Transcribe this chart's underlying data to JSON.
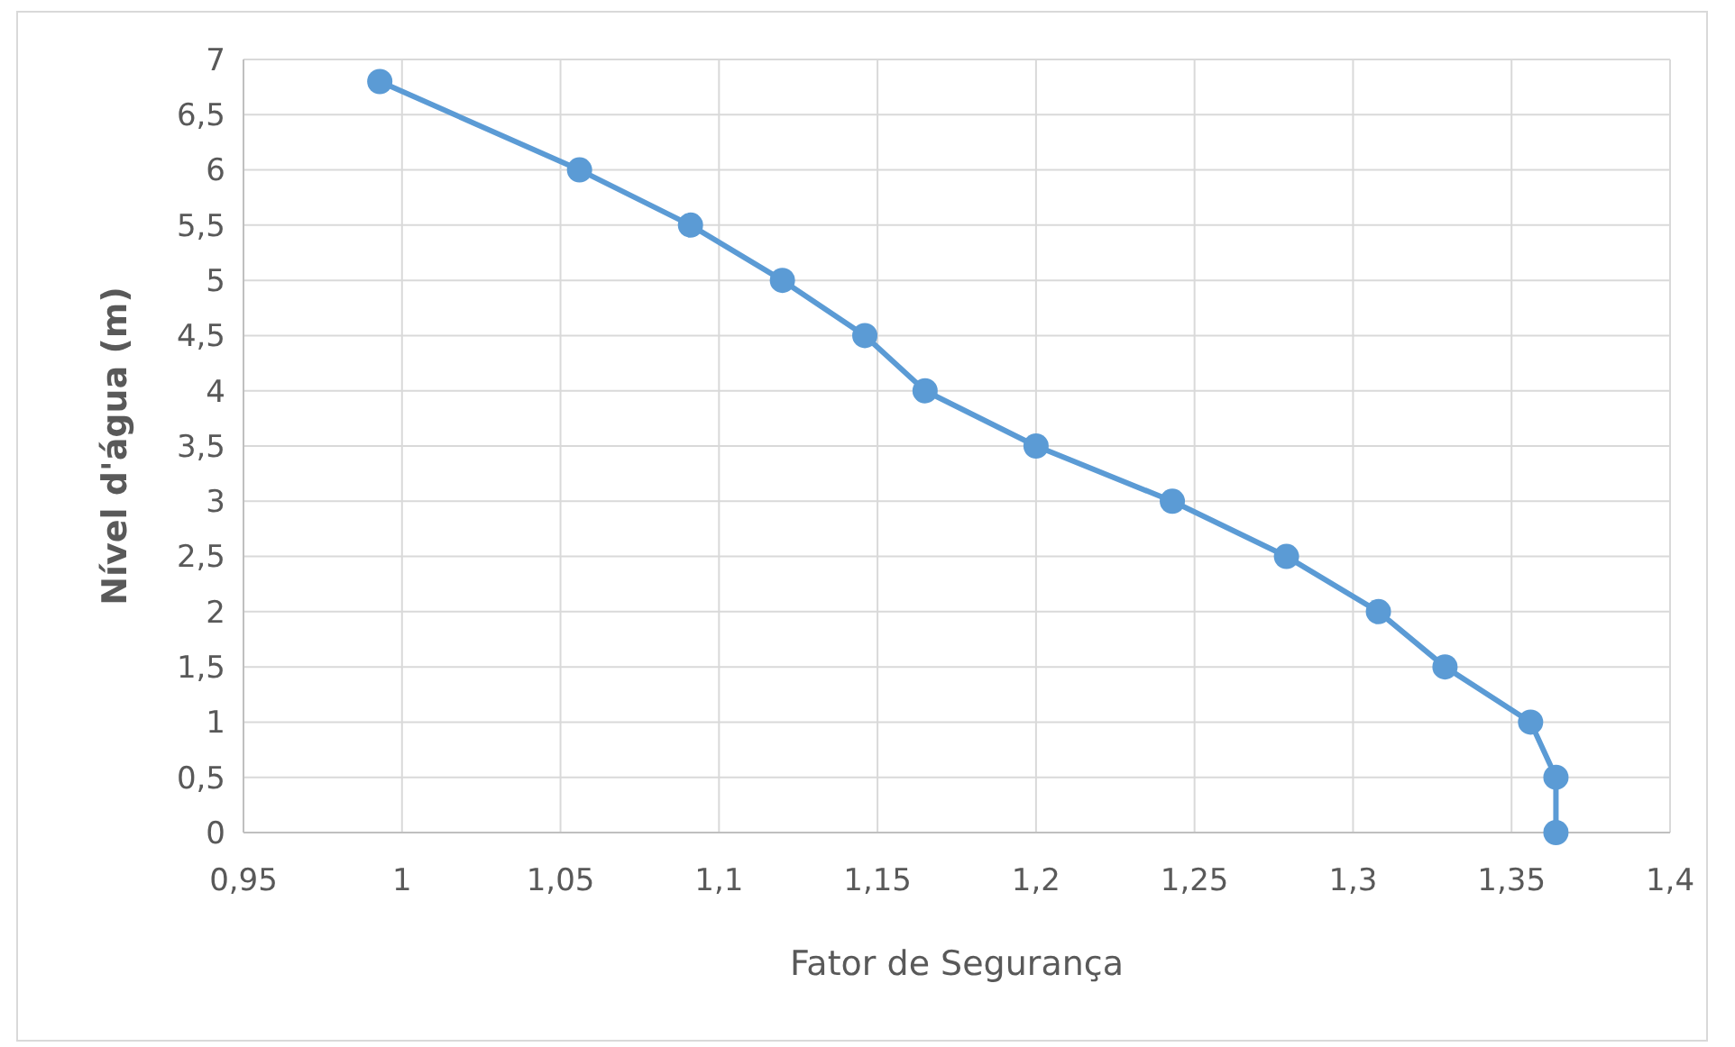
{
  "chart_data": {
    "type": "line",
    "xlabel": "Fator de Segurança",
    "ylabel": "Nível d'água (m)",
    "series": [
      {
        "color": "#5b9bd5",
        "x": [
          0.993,
          1.056,
          1.091,
          1.12,
          1.146,
          1.165,
          1.2,
          1.243,
          1.279,
          1.308,
          1.329,
          1.356,
          1.364,
          1.364
        ],
        "values": [
          6.8,
          6,
          5.5,
          5,
          4.5,
          4,
          3.5,
          3,
          2.5,
          2,
          1.5,
          1,
          0.5,
          0
        ]
      }
    ],
    "xlim": [
      0.95,
      1.4
    ],
    "xticks": [
      {
        "value": 0.95,
        "label": "0,95"
      },
      1,
      {
        "value": 1.05,
        "label": "1,05"
      },
      {
        "value": 1.1,
        "label": "1,1"
      },
      {
        "value": 1.15,
        "label": "1,15"
      },
      {
        "value": 1.2,
        "label": "1,2"
      },
      {
        "value": 1.25,
        "label": "1,25"
      },
      {
        "value": 1.3,
        "label": "1,3"
      },
      {
        "value": 1.35,
        "label": "1,35"
      },
      {
        "value": 1.4,
        "label": "1,4"
      }
    ],
    "ylim": [
      0,
      7
    ],
    "yticks": [
      0,
      {
        "value": 0.5,
        "label": "0,5"
      },
      1,
      {
        "value": 1.5,
        "label": "1,5"
      },
      2,
      {
        "value": 2.5,
        "label": "2,5"
      },
      3,
      {
        "value": 3.5,
        "label": "3,5"
      },
      4,
      {
        "value": 4.5,
        "label": "4,5"
      },
      5,
      {
        "value": 5.5,
        "label": "5,5"
      },
      6,
      {
        "value": 6.5,
        "label": "6,5"
      },
      7
    ],
    "grid": true,
    "marker": "circle",
    "line_style": "solid"
  }
}
